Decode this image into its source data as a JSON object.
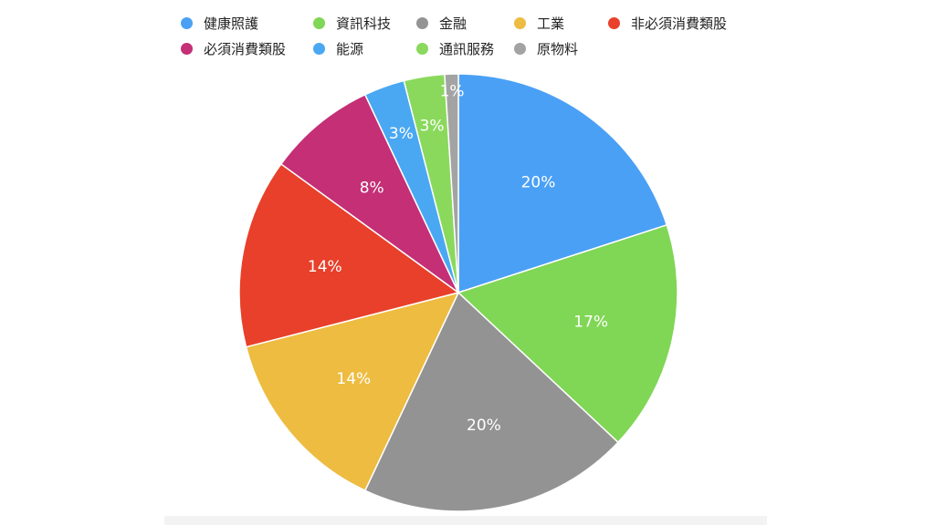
{
  "chart_data": {
    "type": "pie",
    "title": "",
    "legend_position": "top",
    "start_angle": "12 o'clock, clockwise",
    "series": [
      {
        "name": "健康照護",
        "value": 20,
        "label": "20%",
        "color": "#4aa0f5"
      },
      {
        "name": "資訊科技",
        "value": 17,
        "label": "17%",
        "color": "#80d655"
      },
      {
        "name": "金融",
        "value": 20,
        "label": "20%",
        "color": "#939393"
      },
      {
        "name": "工業",
        "value": 14,
        "label": "14%",
        "color": "#edbc40"
      },
      {
        "name": "非必須消費類股",
        "value": 14,
        "label": "14%",
        "color": "#e8402a"
      },
      {
        "name": "必須消費類股",
        "value": 8,
        "label": "8%",
        "color": "#c42f76"
      },
      {
        "name": "能源",
        "value": 3,
        "label": "3%",
        "color": "#4aa8f2"
      },
      {
        "name": "通訊服務",
        "value": 3,
        "label": "3%",
        "color": "#8ad95d"
      },
      {
        "name": "原物料",
        "value": 1,
        "label": "1%",
        "color": "#a3a3a3"
      }
    ]
  }
}
